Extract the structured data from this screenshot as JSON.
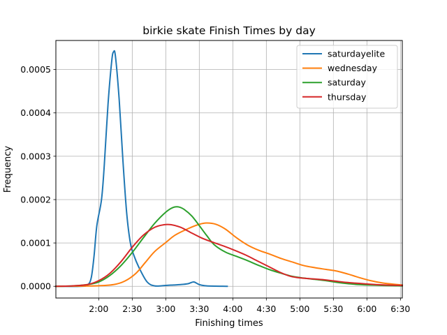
{
  "chart_data": {
    "type": "line",
    "title": "birkie skate Finish Times by day",
    "xlabel": "Finishing times",
    "ylabel": "Frequency",
    "xlim": [
      4900,
      23500
    ],
    "ylim": [
      -2.7e-05,
      0.000567
    ],
    "x_ticks": [
      {
        "value": 7200,
        "label": "2:00"
      },
      {
        "value": 9000,
        "label": "2:30"
      },
      {
        "value": 10800,
        "label": "3:00"
      },
      {
        "value": 12600,
        "label": "3:30"
      },
      {
        "value": 14400,
        "label": "4:00"
      },
      {
        "value": 16200,
        "label": "4:30"
      },
      {
        "value": 18000,
        "label": "5:00"
      },
      {
        "value": 19800,
        "label": "5:30"
      },
      {
        "value": 21600,
        "label": "6:00"
      },
      {
        "value": 23400,
        "label": "6:30"
      }
    ],
    "y_ticks": [
      {
        "value": 0.0,
        "label": "0.0000"
      },
      {
        "value": 0.0001,
        "label": "0.0001"
      },
      {
        "value": 0.0002,
        "label": "0.0002"
      },
      {
        "value": 0.0003,
        "label": "0.0003"
      },
      {
        "value": 0.0004,
        "label": "0.0004"
      },
      {
        "value": 0.0005,
        "label": "0.0005"
      }
    ],
    "grid": true,
    "legend_position": "top-right",
    "series": [
      {
        "name": "saturdayelite",
        "color": "#1f77b4",
        "points": [
          [
            4900,
            0
          ],
          [
            6200,
            0
          ],
          [
            6600,
            3e-06
          ],
          [
            6800,
            2e-05
          ],
          [
            6950,
            7e-05
          ],
          [
            7100,
            0.00014
          ],
          [
            7350,
            0.0002
          ],
          [
            7500,
            0.00028
          ],
          [
            7700,
            0.00042
          ],
          [
            7900,
            0.00052
          ],
          [
            8000,
            0.000541
          ],
          [
            8100,
            0.00053
          ],
          [
            8300,
            0.00043
          ],
          [
            8500,
            0.00029
          ],
          [
            8700,
            0.00017
          ],
          [
            8900,
            0.0001
          ],
          [
            9100,
            7e-05
          ],
          [
            9400,
            4e-05
          ],
          [
            9800,
            1e-05
          ],
          [
            10200,
            1e-06
          ],
          [
            10800,
            2e-06
          ],
          [
            11200,
            3e-06
          ],
          [
            11600,
            4e-06
          ],
          [
            12000,
            6e-06
          ],
          [
            12300,
            1e-05
          ],
          [
            12600,
            4e-06
          ],
          [
            13000,
            1e-06
          ],
          [
            14100,
            0
          ]
        ]
      },
      {
        "name": "wednesday",
        "color": "#ff7f0e",
        "points": [
          [
            4900,
            0
          ],
          [
            7000,
            1e-06
          ],
          [
            8000,
            4e-06
          ],
          [
            8600,
            1.2e-05
          ],
          [
            9200,
            3e-05
          ],
          [
            9700,
            5.5e-05
          ],
          [
            10200,
            8e-05
          ],
          [
            10800,
            0.000101
          ],
          [
            11300,
            0.000118
          ],
          [
            12000,
            0.000133
          ],
          [
            12600,
            0.000143
          ],
          [
            13000,
            0.000146
          ],
          [
            13500,
            0.000143
          ],
          [
            14000,
            0.000132
          ],
          [
            14600,
            0.000112
          ],
          [
            15200,
            9.5e-05
          ],
          [
            15800,
            8.3e-05
          ],
          [
            16400,
            7.4e-05
          ],
          [
            17000,
            6.4e-05
          ],
          [
            17600,
            5.6e-05
          ],
          [
            18200,
            4.8e-05
          ],
          [
            18800,
            4.3e-05
          ],
          [
            19400,
            3.9e-05
          ],
          [
            20000,
            3.5e-05
          ],
          [
            20600,
            2.8e-05
          ],
          [
            21200,
            2e-05
          ],
          [
            21800,
            1.3e-05
          ],
          [
            22400,
            8e-06
          ],
          [
            23000,
            5e-06
          ],
          [
            23500,
            3e-06
          ]
        ]
      },
      {
        "name": "saturday",
        "color": "#2ca02c",
        "points": [
          [
            4900,
            0
          ],
          [
            5800,
            1e-06
          ],
          [
            6600,
            4e-06
          ],
          [
            7200,
            1e-05
          ],
          [
            7800,
            2.5e-05
          ],
          [
            8400,
            4.8e-05
          ],
          [
            9000,
            7.8e-05
          ],
          [
            9600,
            0.000112
          ],
          [
            10200,
            0.000145
          ],
          [
            10800,
            0.000171
          ],
          [
            11200,
            0.000182
          ],
          [
            11500,
            0.000183
          ],
          [
            11800,
            0.000177
          ],
          [
            12200,
            0.000162
          ],
          [
            12600,
            0.00014
          ],
          [
            13000,
            0.000117
          ],
          [
            13400,
            9.6e-05
          ],
          [
            14000,
            7.9e-05
          ],
          [
            14600,
            6.9e-05
          ],
          [
            15200,
            5.9e-05
          ],
          [
            15800,
            4.8e-05
          ],
          [
            16400,
            3.8e-05
          ],
          [
            17000,
            3e-05
          ],
          [
            17600,
            2.3e-05
          ],
          [
            18200,
            1.9e-05
          ],
          [
            18800,
            1.6e-05
          ],
          [
            19400,
            1.3e-05
          ],
          [
            20000,
            9e-06
          ],
          [
            20600,
            6e-06
          ],
          [
            21200,
            4e-06
          ],
          [
            22400,
            2e-06
          ],
          [
            23500,
            1e-06
          ]
        ]
      },
      {
        "name": "thursday",
        "color": "#d62728",
        "points": [
          [
            4900,
            0
          ],
          [
            5800,
            1e-06
          ],
          [
            6600,
            4e-06
          ],
          [
            7200,
            1.3e-05
          ],
          [
            7800,
            3e-05
          ],
          [
            8400,
            5.7e-05
          ],
          [
            9000,
            9e-05
          ],
          [
            9600,
            0.000118
          ],
          [
            10200,
            0.000136
          ],
          [
            10700,
            0.000142
          ],
          [
            11100,
            0.000142
          ],
          [
            11600,
            0.000136
          ],
          [
            12100,
            0.000125
          ],
          [
            12700,
            0.000112
          ],
          [
            13300,
            0.000102
          ],
          [
            13900,
            9.3e-05
          ],
          [
            14500,
            8.3e-05
          ],
          [
            15100,
            7.2e-05
          ],
          [
            15700,
            5.9e-05
          ],
          [
            16300,
            4.6e-05
          ],
          [
            16900,
            3.3e-05
          ],
          [
            17500,
            2.3e-05
          ],
          [
            18100,
            1.9e-05
          ],
          [
            18700,
            1.7e-05
          ],
          [
            19300,
            1.5e-05
          ],
          [
            19900,
            1.2e-05
          ],
          [
            20500,
            9e-06
          ],
          [
            21100,
            7e-06
          ],
          [
            21700,
            5e-06
          ],
          [
            22600,
            3e-06
          ],
          [
            23500,
            2e-06
          ]
        ]
      }
    ]
  }
}
